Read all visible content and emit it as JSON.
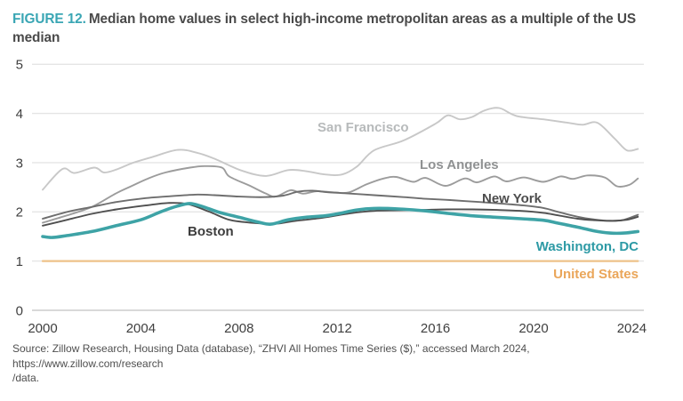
{
  "header": {
    "figure_label": "FIGURE 12.",
    "title": "Median home values in select high-income metropolitan areas as a multiple of the US median"
  },
  "source": {
    "line1": "Source: Zillow Research, Housing Data (database), “ZHVI All Homes Time Series ($),” accessed March 2024, https://www.zillow.com/research",
    "line2": "/data."
  },
  "chart_data": {
    "type": "line",
    "title": "Median home values in select high-income metropolitan areas as a multiple of the US median",
    "x_axis": {
      "ticks": [
        "2000",
        "2004",
        "2008",
        "2012",
        "2016",
        "2020",
        "2024"
      ],
      "range": [
        2000,
        2024.25
      ]
    },
    "y_axis": {
      "ticks": [
        5,
        4,
        3,
        2,
        1,
        0
      ],
      "range": [
        0,
        5
      ],
      "grid": true
    },
    "legend_position": "inline-labels",
    "axis_color": "#3f3f3f",
    "grid_color": "#e5e5e5",
    "series": [
      {
        "name": "San Francisco",
        "slug": "san-francisco",
        "color": "#c8c8c8",
        "label_color": "#b7babb",
        "stroke_width": 1.9,
        "points": [
          [
            2000,
            2.45
          ],
          [
            2000.8,
            2.87
          ],
          [
            2001.3,
            2.79
          ],
          [
            2002.1,
            2.9
          ],
          [
            2002.5,
            2.8
          ],
          [
            2003,
            2.86
          ],
          [
            2003.7,
            3.0
          ],
          [
            2004.5,
            3.12
          ],
          [
            2005.5,
            3.26
          ],
          [
            2006.3,
            3.2
          ],
          [
            2007,
            3.08
          ],
          [
            2008.1,
            2.84
          ],
          [
            2009.1,
            2.73
          ],
          [
            2010,
            2.85
          ],
          [
            2010.7,
            2.83
          ],
          [
            2011.5,
            2.76
          ],
          [
            2012.2,
            2.76
          ],
          [
            2012.8,
            2.92
          ],
          [
            2013.5,
            3.25
          ],
          [
            2014.7,
            3.45
          ],
          [
            2016,
            3.79
          ],
          [
            2016.5,
            3.96
          ],
          [
            2017,
            3.88
          ],
          [
            2017.5,
            3.93
          ],
          [
            2018,
            4.06
          ],
          [
            2018.6,
            4.11
          ],
          [
            2019.3,
            3.95
          ],
          [
            2020.4,
            3.88
          ],
          [
            2021.4,
            3.81
          ],
          [
            2022,
            3.77
          ],
          [
            2022.6,
            3.81
          ],
          [
            2023.3,
            3.49
          ],
          [
            2023.8,
            3.25
          ],
          [
            2024.25,
            3.28
          ]
        ]
      },
      {
        "name": "Los Angeles",
        "slug": "los-angeles",
        "color": "#9c9c9c",
        "label_color": "#8f9192",
        "stroke_width": 1.9,
        "points": [
          [
            2000,
            1.78
          ],
          [
            2001,
            1.93
          ],
          [
            2002,
            2.1
          ],
          [
            2003,
            2.38
          ],
          [
            2003.6,
            2.52
          ],
          [
            2004.3,
            2.68
          ],
          [
            2005,
            2.8
          ],
          [
            2006,
            2.9
          ],
          [
            2006.6,
            2.93
          ],
          [
            2007.3,
            2.9
          ],
          [
            2007.6,
            2.72
          ],
          [
            2008.4,
            2.54
          ],
          [
            2009.1,
            2.37
          ],
          [
            2009.5,
            2.31
          ],
          [
            2010.1,
            2.44
          ],
          [
            2010.6,
            2.37
          ],
          [
            2011.2,
            2.42
          ],
          [
            2012,
            2.39
          ],
          [
            2012.5,
            2.4
          ],
          [
            2013.2,
            2.56
          ],
          [
            2013.9,
            2.68
          ],
          [
            2014.4,
            2.71
          ],
          [
            2015.1,
            2.61
          ],
          [
            2015.6,
            2.69
          ],
          [
            2016.4,
            2.53
          ],
          [
            2017.2,
            2.68
          ],
          [
            2017.7,
            2.6
          ],
          [
            2018.4,
            2.72
          ],
          [
            2018.9,
            2.62
          ],
          [
            2019.6,
            2.7
          ],
          [
            2020.4,
            2.61
          ],
          [
            2021.1,
            2.72
          ],
          [
            2021.6,
            2.67
          ],
          [
            2022.2,
            2.74
          ],
          [
            2022.9,
            2.7
          ],
          [
            2023.4,
            2.52
          ],
          [
            2023.9,
            2.55
          ],
          [
            2024.25,
            2.68
          ]
        ]
      },
      {
        "name": "New York",
        "slug": "new-york",
        "color": "#6e6e6e",
        "label_color": "#4d4d4d",
        "stroke_width": 1.9,
        "points": [
          [
            2000,
            1.86
          ],
          [
            2001,
            2.0
          ],
          [
            2002,
            2.1
          ],
          [
            2003,
            2.2
          ],
          [
            2004.2,
            2.28
          ],
          [
            2005,
            2.31
          ],
          [
            2006.2,
            2.35
          ],
          [
            2007,
            2.34
          ],
          [
            2008,
            2.31
          ],
          [
            2009,
            2.3
          ],
          [
            2009.8,
            2.33
          ],
          [
            2010.4,
            2.41
          ],
          [
            2011,
            2.43
          ],
          [
            2011.6,
            2.4
          ],
          [
            2012.3,
            2.38
          ],
          [
            2013.5,
            2.34
          ],
          [
            2014.7,
            2.3
          ],
          [
            2015.5,
            2.27
          ],
          [
            2016.6,
            2.24
          ],
          [
            2017.8,
            2.2
          ],
          [
            2018.9,
            2.16
          ],
          [
            2019.6,
            2.13
          ],
          [
            2020.4,
            2.08
          ],
          [
            2021,
            2.0
          ],
          [
            2021.8,
            1.9
          ],
          [
            2022.4,
            1.85
          ],
          [
            2023,
            1.82
          ],
          [
            2023.6,
            1.83
          ],
          [
            2024.25,
            1.94
          ]
        ]
      },
      {
        "name": "Boston",
        "slug": "boston",
        "color": "#4f4f4f",
        "label_color": "#3d3d3d",
        "stroke_width": 1.9,
        "points": [
          [
            2000,
            1.72
          ],
          [
            2001,
            1.84
          ],
          [
            2002,
            1.96
          ],
          [
            2003,
            2.05
          ],
          [
            2004.2,
            2.13
          ],
          [
            2005.1,
            2.18
          ],
          [
            2005.9,
            2.16
          ],
          [
            2006.8,
            2.0
          ],
          [
            2007.6,
            1.84
          ],
          [
            2008.5,
            1.78
          ],
          [
            2009.5,
            1.76
          ],
          [
            2010.2,
            1.81
          ],
          [
            2011.4,
            1.88
          ],
          [
            2012.5,
            1.97
          ],
          [
            2013.5,
            2.02
          ],
          [
            2014.5,
            2.03
          ],
          [
            2015.5,
            2.04
          ],
          [
            2016.5,
            2.05
          ],
          [
            2017.5,
            2.05
          ],
          [
            2018.5,
            2.04
          ],
          [
            2019.5,
            2.02
          ],
          [
            2020.4,
            1.98
          ],
          [
            2021,
            1.93
          ],
          [
            2021.8,
            1.86
          ],
          [
            2022.5,
            1.83
          ],
          [
            2023.2,
            1.82
          ],
          [
            2023.8,
            1.84
          ],
          [
            2024.25,
            1.9
          ]
        ]
      },
      {
        "name": "Washington, DC",
        "slug": "washington-dc",
        "color": "#3ea3a6",
        "label_color": "#2d9aa5",
        "stroke_width": 3.6,
        "points": [
          [
            2000,
            1.5
          ],
          [
            2000.4,
            1.48
          ],
          [
            2001,
            1.52
          ],
          [
            2002,
            1.6
          ],
          [
            2003,
            1.72
          ],
          [
            2004,
            1.84
          ],
          [
            2004.8,
            2.0
          ],
          [
            2005.5,
            2.12
          ],
          [
            2006,
            2.17
          ],
          [
            2006.5,
            2.11
          ],
          [
            2007.2,
            1.99
          ],
          [
            2008,
            1.89
          ],
          [
            2008.8,
            1.79
          ],
          [
            2009.3,
            1.75
          ],
          [
            2010,
            1.84
          ],
          [
            2010.7,
            1.89
          ],
          [
            2011.5,
            1.92
          ],
          [
            2012,
            1.96
          ],
          [
            2012.8,
            2.04
          ],
          [
            2013.5,
            2.07
          ],
          [
            2014.5,
            2.06
          ],
          [
            2015.6,
            2.02
          ],
          [
            2016.5,
            1.97
          ],
          [
            2017.5,
            1.92
          ],
          [
            2018.5,
            1.89
          ],
          [
            2019.5,
            1.86
          ],
          [
            2020.4,
            1.83
          ],
          [
            2021,
            1.77
          ],
          [
            2021.8,
            1.69
          ],
          [
            2022.5,
            1.61
          ],
          [
            2023.1,
            1.57
          ],
          [
            2023.7,
            1.57
          ],
          [
            2024.25,
            1.6
          ]
        ]
      },
      {
        "name": "United States",
        "slug": "united-states",
        "color": "#eec289",
        "label_color": "#eaa65a",
        "stroke_width": 2.2,
        "points": [
          [
            2000,
            1
          ],
          [
            2024.25,
            1
          ]
        ]
      }
    ]
  }
}
